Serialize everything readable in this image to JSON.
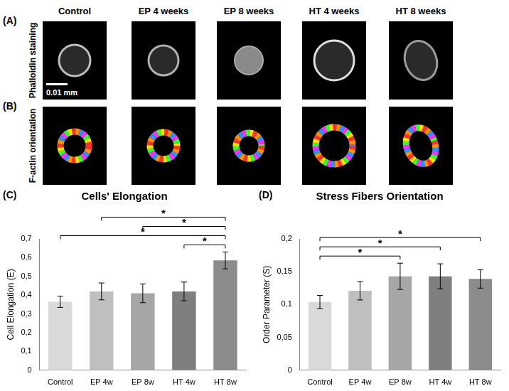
{
  "figure": {
    "panel_a": {
      "label": "(A)",
      "row_label": "Phalloidin staining",
      "scale_bar": "0.01 mm"
    },
    "panel_b": {
      "label": "(B)",
      "row_label": "F-actin orientation"
    },
    "columns": [
      "Control",
      "EP 4 weeks",
      "EP 8 weeks",
      "HT 4 weeks",
      "HT 8 weeks"
    ]
  },
  "chart_data": [
    {
      "type": "bar",
      "panel_label": "(C)",
      "title": "Cells' Elongation",
      "y_label": "Cell Elongation (E)",
      "categories": [
        "Control",
        "EP 4w",
        "EP 8w",
        "HT 4w",
        "HT 8w"
      ],
      "values": [
        0.365,
        0.42,
        0.41,
        0.42,
        0.585
      ],
      "errors": [
        0.03,
        0.045,
        0.05,
        0.05,
        0.045
      ],
      "colors": [
        "#d9d9d9",
        "#bfbfbf",
        "#a6a6a6",
        "#7f7f7f",
        "#8c8c8c"
      ],
      "ylim": [
        0,
        0.7
      ],
      "yticks": [
        0,
        {
          "value": 0.1,
          "label": "0,1"
        },
        {
          "value": 0.2,
          "label": "0,2"
        },
        {
          "value": 0.3,
          "label": "0,3"
        },
        {
          "value": 0.4,
          "label": "0,4"
        },
        {
          "value": 0.5,
          "label": "0,5"
        },
        {
          "value": 0.6,
          "label": "0,6"
        },
        {
          "value": 0.7,
          "label": "0,7"
        }
      ],
      "grid": false,
      "significance": [
        {
          "from": "HT 4w",
          "to": "HT 8w",
          "label": "*"
        },
        {
          "from": "Control",
          "to": "HT 8w",
          "label": "*"
        },
        {
          "from": "EP 8w",
          "to": "HT 8w",
          "label": "*"
        },
        {
          "from": "EP 4w",
          "to": "HT 8w",
          "label": "*"
        }
      ]
    },
    {
      "type": "bar",
      "panel_label": "(D)",
      "title": "Stress Fibers Orientation",
      "y_label": "Order Parameter (S)",
      "categories": [
        "Control",
        "EP 4w",
        "EP 8w",
        "HT 4w",
        "HT 8w"
      ],
      "values": [
        0.104,
        0.121,
        0.143,
        0.143,
        0.139
      ],
      "errors": [
        0.01,
        0.014,
        0.02,
        0.019,
        0.014
      ],
      "colors": [
        "#d9d9d9",
        "#bfbfbf",
        "#a6a6a6",
        "#7f7f7f",
        "#8c8c8c"
      ],
      "ylim": [
        0,
        0.2
      ],
      "yticks": [
        0,
        {
          "value": 0.05,
          "label": "0,05"
        },
        {
          "value": 0.1,
          "label": "0,1"
        },
        {
          "value": 0.15,
          "label": "0,15"
        },
        {
          "value": 0.2,
          "label": "0,2"
        }
      ],
      "grid": false,
      "significance": [
        {
          "from": "Control",
          "to": "EP 8w",
          "label": "*"
        },
        {
          "from": "Control",
          "to": "HT 4w",
          "label": "*"
        },
        {
          "from": "Control",
          "to": "HT 8w",
          "label": "*"
        }
      ]
    }
  ]
}
